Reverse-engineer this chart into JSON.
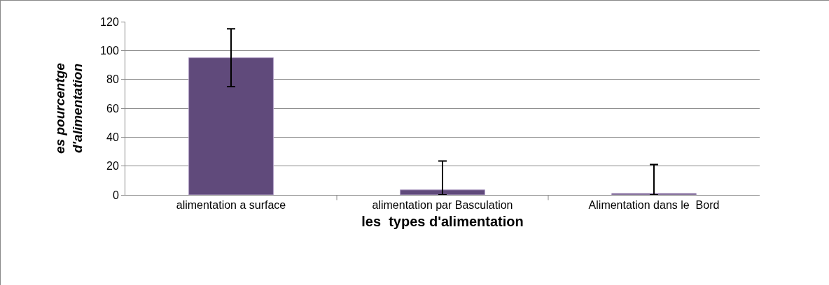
{
  "chart_data": {
    "type": "bar",
    "xlabel": "les  types d'alimentation",
    "ylabel": "es pourcentge d'alimentation",
    "categories": [
      "alimentation a surface",
      "alimentation par Basculation",
      "Alimentation dans le  Bord"
    ],
    "values": [
      95,
      3.5,
      1
    ],
    "errors": [
      20,
      [
        0,
        23.5
      ],
      [
        0,
        21
      ]
    ],
    "color": "#604a7b",
    "ylim": [
      0,
      120
    ],
    "yticks": [
      0,
      20,
      40,
      60,
      80,
      100,
      120
    ],
    "grid": "y"
  }
}
